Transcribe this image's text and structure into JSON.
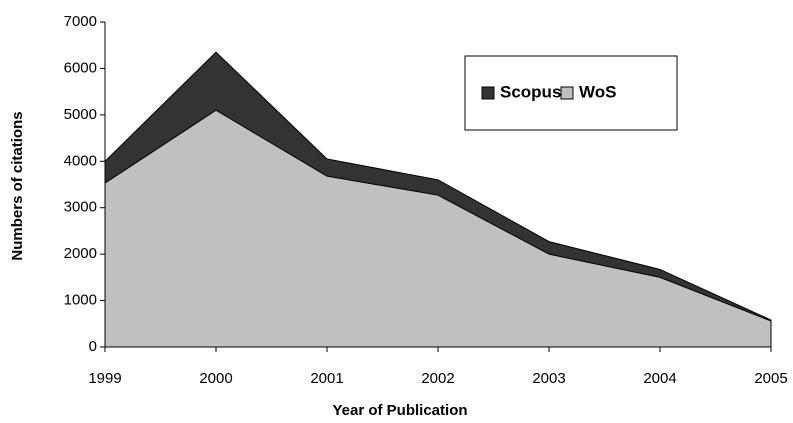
{
  "chart_data": {
    "type": "area",
    "x_label": "Year of Publication",
    "y_label": "Numbers of citations",
    "categories": [
      "1999",
      "2000",
      "2001",
      "2002",
      "2003",
      "2004",
      "2005"
    ],
    "series": [
      {
        "name": "Scopus",
        "color": "#333333",
        "values": [
          4000,
          6350,
          4050,
          3600,
          2270,
          1670,
          580
        ]
      },
      {
        "name": "WoS",
        "color": "#c0c0c0",
        "values": [
          3530,
          5100,
          3680,
          3270,
          2000,
          1500,
          560
        ]
      }
    ],
    "ylim": [
      0,
      7000
    ],
    "yticks": [
      0,
      1000,
      2000,
      3000,
      4000,
      5000,
      6000,
      7000
    ],
    "grid": false,
    "legend": "upper right"
  }
}
